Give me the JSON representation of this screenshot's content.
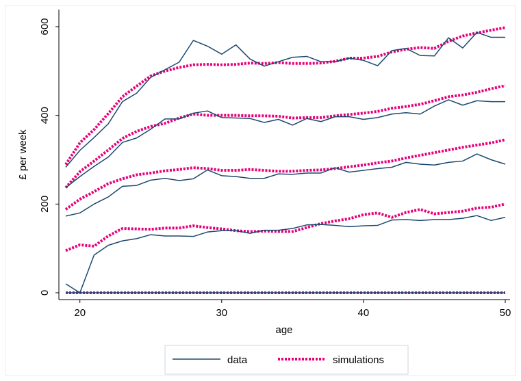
{
  "chart_data": {
    "type": "line",
    "xlabel": "age",
    "ylabel": "£ per week",
    "xlim": [
      19,
      50
    ],
    "ylim": [
      0,
      600
    ],
    "xticks": [
      20,
      30,
      40,
      50
    ],
    "yticks": [
      0,
      200,
      400,
      600
    ],
    "x": [
      19,
      20,
      21,
      22,
      23,
      24,
      25,
      26,
      27,
      28,
      29,
      30,
      31,
      32,
      33,
      34,
      35,
      36,
      37,
      38,
      39,
      40,
      41,
      42,
      43,
      44,
      45,
      46,
      47,
      48,
      49,
      50
    ],
    "grid": false,
    "legend_position": "bottom",
    "colors": {
      "data": "#1a476f",
      "simulations": "#e8007a"
    },
    "series": [
      {
        "name": "data",
        "style": "solid",
        "values": [
          20,
          0,
          0,
          0,
          0,
          0,
          0,
          0,
          0,
          0,
          0,
          0,
          0,
          0,
          0,
          0,
          0,
          0,
          0,
          0,
          0,
          0,
          0,
          0,
          0,
          0,
          0,
          0,
          0,
          0,
          0,
          0
        ]
      },
      {
        "name": "data",
        "style": "solid",
        "values": [
          0,
          0,
          85,
          107,
          117,
          122,
          131,
          128,
          128,
          127,
          137,
          140,
          140,
          134,
          141,
          141,
          145,
          153,
          154,
          152,
          149,
          151,
          152,
          164,
          165,
          163,
          165,
          165,
          168,
          174,
          163,
          170
        ]
      },
      {
        "name": "data",
        "style": "solid",
        "values": [
          173,
          180,
          200,
          216,
          240,
          242,
          254,
          258,
          253,
          257,
          277,
          264,
          262,
          258,
          258,
          268,
          267,
          270,
          270,
          282,
          272,
          276,
          280,
          283,
          294,
          290,
          288,
          294,
          297,
          313,
          300,
          290
        ]
      },
      {
        "name": "data",
        "style": "solid",
        "values": [
          237,
          262,
          285,
          306,
          339,
          349,
          369,
          392,
          392,
          405,
          410,
          395,
          394,
          393,
          384,
          391,
          378,
          393,
          386,
          397,
          397,
          391,
          395,
          403,
          406,
          403,
          421,
          435,
          423,
          433,
          431,
          431
        ]
      },
      {
        "name": "data",
        "style": "solid",
        "values": [
          283,
          321,
          350,
          381,
          431,
          450,
          486,
          503,
          520,
          569,
          556,
          538,
          559,
          527,
          511,
          521,
          531,
          533,
          521,
          521,
          529,
          524,
          512,
          546,
          551,
          535,
          534,
          575,
          552,
          587,
          576,
          576
        ]
      },
      {
        "name": "simulations",
        "style": "dotted",
        "values": [
          0,
          0,
          0,
          0,
          0,
          0,
          0,
          0,
          0,
          0,
          0,
          0,
          0,
          0,
          0,
          0,
          0,
          0,
          0,
          0,
          0,
          0,
          0,
          0,
          0,
          0,
          0,
          0,
          0,
          0,
          0,
          0
        ]
      },
      {
        "name": "simulations",
        "style": "dotted",
        "values": [
          95,
          108,
          105,
          128,
          145,
          144,
          143,
          146,
          146,
          151,
          147,
          144,
          140,
          138,
          139,
          138,
          138,
          147,
          156,
          162,
          167,
          176,
          180,
          170,
          181,
          188,
          178,
          181,
          184,
          191,
          193,
          200
        ]
      },
      {
        "name": "simulations",
        "style": "dotted",
        "values": [
          188,
          211,
          228,
          246,
          257,
          266,
          270,
          275,
          278,
          282,
          280,
          276,
          276,
          278,
          276,
          274,
          274,
          276,
          277,
          280,
          284,
          288,
          293,
          297,
          304,
          310,
          316,
          322,
          328,
          333,
          338,
          345
        ]
      },
      {
        "name": "simulations",
        "style": "dotted",
        "values": [
          237,
          273,
          297,
          322,
          348,
          364,
          375,
          382,
          394,
          403,
          400,
          400,
          400,
          399,
          399,
          398,
          394,
          395,
          395,
          399,
          402,
          405,
          409,
          416,
          420,
          425,
          433,
          442,
          446,
          452,
          460,
          467
        ]
      },
      {
        "name": "simulations",
        "style": "dotted",
        "values": [
          289,
          338,
          368,
          404,
          442,
          466,
          489,
          500,
          508,
          514,
          515,
          514,
          515,
          518,
          517,
          519,
          517,
          517,
          518,
          522,
          529,
          529,
          533,
          543,
          549,
          553,
          551,
          567,
          579,
          586,
          592,
          598
        ]
      }
    ]
  }
}
